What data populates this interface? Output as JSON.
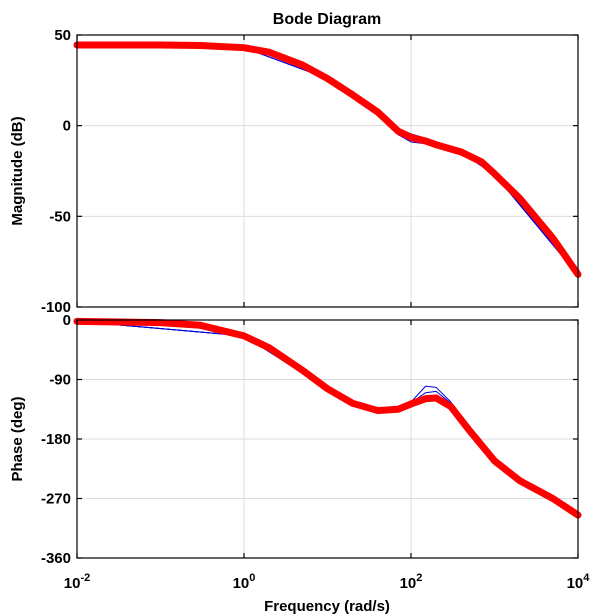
{
  "chart_data": {
    "type": "line",
    "title": "Bode Diagram",
    "xlabel": "Frequency  (rad/s)",
    "x_scale": "log",
    "xlim": [
      0.01,
      10000
    ],
    "x_ticks": [
      {
        "base": "10",
        "exp": "-2",
        "value": 0.01
      },
      {
        "base": "10",
        "exp": "0",
        "value": 1
      },
      {
        "base": "10",
        "exp": "2",
        "value": 100
      },
      {
        "base": "10",
        "exp": "4",
        "value": 10000
      }
    ],
    "grid": true,
    "colors": {
      "nominal": "#ff0000",
      "family": "#0000dd"
    },
    "subplots": [
      {
        "id": "magnitude",
        "ylabel": "Magnitude (dB)",
        "ylim": [
          -100,
          50
        ],
        "y_ticks": [
          "50",
          "0",
          "-50",
          "-100"
        ],
        "series": [
          {
            "role": "nominal",
            "x": [
              0.01,
              0.1,
              0.3,
              1,
              2,
              5,
              10,
              20,
              40,
              70,
              100,
              150,
              200,
              400,
              700,
              1000,
              2000,
              5000,
              10000
            ],
            "y": [
              44.5,
              44.5,
              44.2,
              43,
              40.5,
              33.5,
              26,
              17,
              7.5,
              -3,
              -6.5,
              -8.5,
              -10.5,
              -14.5,
              -20,
              -26.5,
              -40,
              -62,
              -82
            ]
          },
          {
            "role": "family",
            "x": [
              0.01,
              1,
              10,
              20,
              40,
              70,
              100,
              150,
              200,
              400,
              1000,
              10000
            ],
            "y": [
              44.5,
              43,
              26,
              17,
              6.5,
              -5,
              -9,
              -10,
              -11,
              -14.8,
              -26.8,
              -82.2
            ]
          },
          {
            "role": "family",
            "x": [
              0.01,
              1,
              10,
              20,
              40,
              70,
              100,
              150,
              200,
              400,
              1000,
              10000
            ],
            "y": [
              44.5,
              43,
              26,
              17,
              8,
              -1.5,
              -4.5,
              -7,
              -9.5,
              -14.2,
              -26.2,
              -81.8
            ]
          },
          {
            "role": "family",
            "x": [
              0.01,
              1,
              10,
              20,
              40,
              70,
              100,
              150,
              200,
              400,
              1000,
              10000
            ],
            "y": [
              44.5,
              43,
              26,
              17,
              7,
              -4,
              -7.8,
              -9.5,
              -11,
              -15,
              -27,
              -82.5
            ]
          }
        ]
      },
      {
        "id": "phase",
        "ylabel": "Phase (deg)",
        "ylim": [
          -360,
          0
        ],
        "y_ticks": [
          "0",
          "-90",
          "-180",
          "-270",
          "-360"
        ],
        "series": [
          {
            "role": "nominal",
            "x": [
              0.01,
              0.1,
              0.3,
              1,
              2,
              5,
              10,
              20,
              40,
              70,
              100,
              150,
              200,
              300,
              500,
              1000,
              2000,
              5000,
              10000
            ],
            "y": [
              -2,
              -4,
              -8,
              -24,
              -42,
              -76,
              -104,
              -126,
              -137,
              -135,
              -127,
              -119,
              -118,
              -131,
              -167,
              -213,
              -243,
              -270,
              -295
            ]
          },
          {
            "role": "family",
            "x": [
              0.01,
              1,
              10,
              20,
              40,
              70,
              100,
              150,
              200,
              300,
              500,
              1000,
              10000
            ],
            "y": [
              -2,
              -24,
              -104,
              -127,
              -140,
              -138,
              -124,
              -100,
              -102,
              -124,
              -167,
              -213,
              -295
            ]
          },
          {
            "role": "family",
            "x": [
              0.01,
              1,
              10,
              20,
              40,
              70,
              100,
              150,
              200,
              300,
              500,
              1000,
              10000
            ],
            "y": [
              -2,
              -24,
              -104,
              -125,
              -133,
              -131,
              -128,
              -118,
              -118,
              -130,
              -167,
              -213,
              -295
            ]
          },
          {
            "role": "family",
            "x": [
              0.01,
              1,
              10,
              20,
              40,
              70,
              100,
              150,
              200,
              300,
              500,
              1000,
              10000
            ],
            "y": [
              -2,
              -24,
              -104,
              -126,
              -138,
              -137,
              -125,
              -110,
              -108,
              -126,
              -167,
              -213,
              -295
            ]
          },
          {
            "role": "family",
            "x": [
              0.01,
              1,
              10,
              20,
              40,
              70,
              100,
              150,
              200,
              300,
              500,
              1000,
              10000
            ],
            "y": [
              -2,
              -24,
              -104,
              -125,
              -135,
              -133,
              -130,
              -122,
              -120,
              -131,
              -167,
              -213,
              -295
            ]
          }
        ]
      }
    ]
  }
}
